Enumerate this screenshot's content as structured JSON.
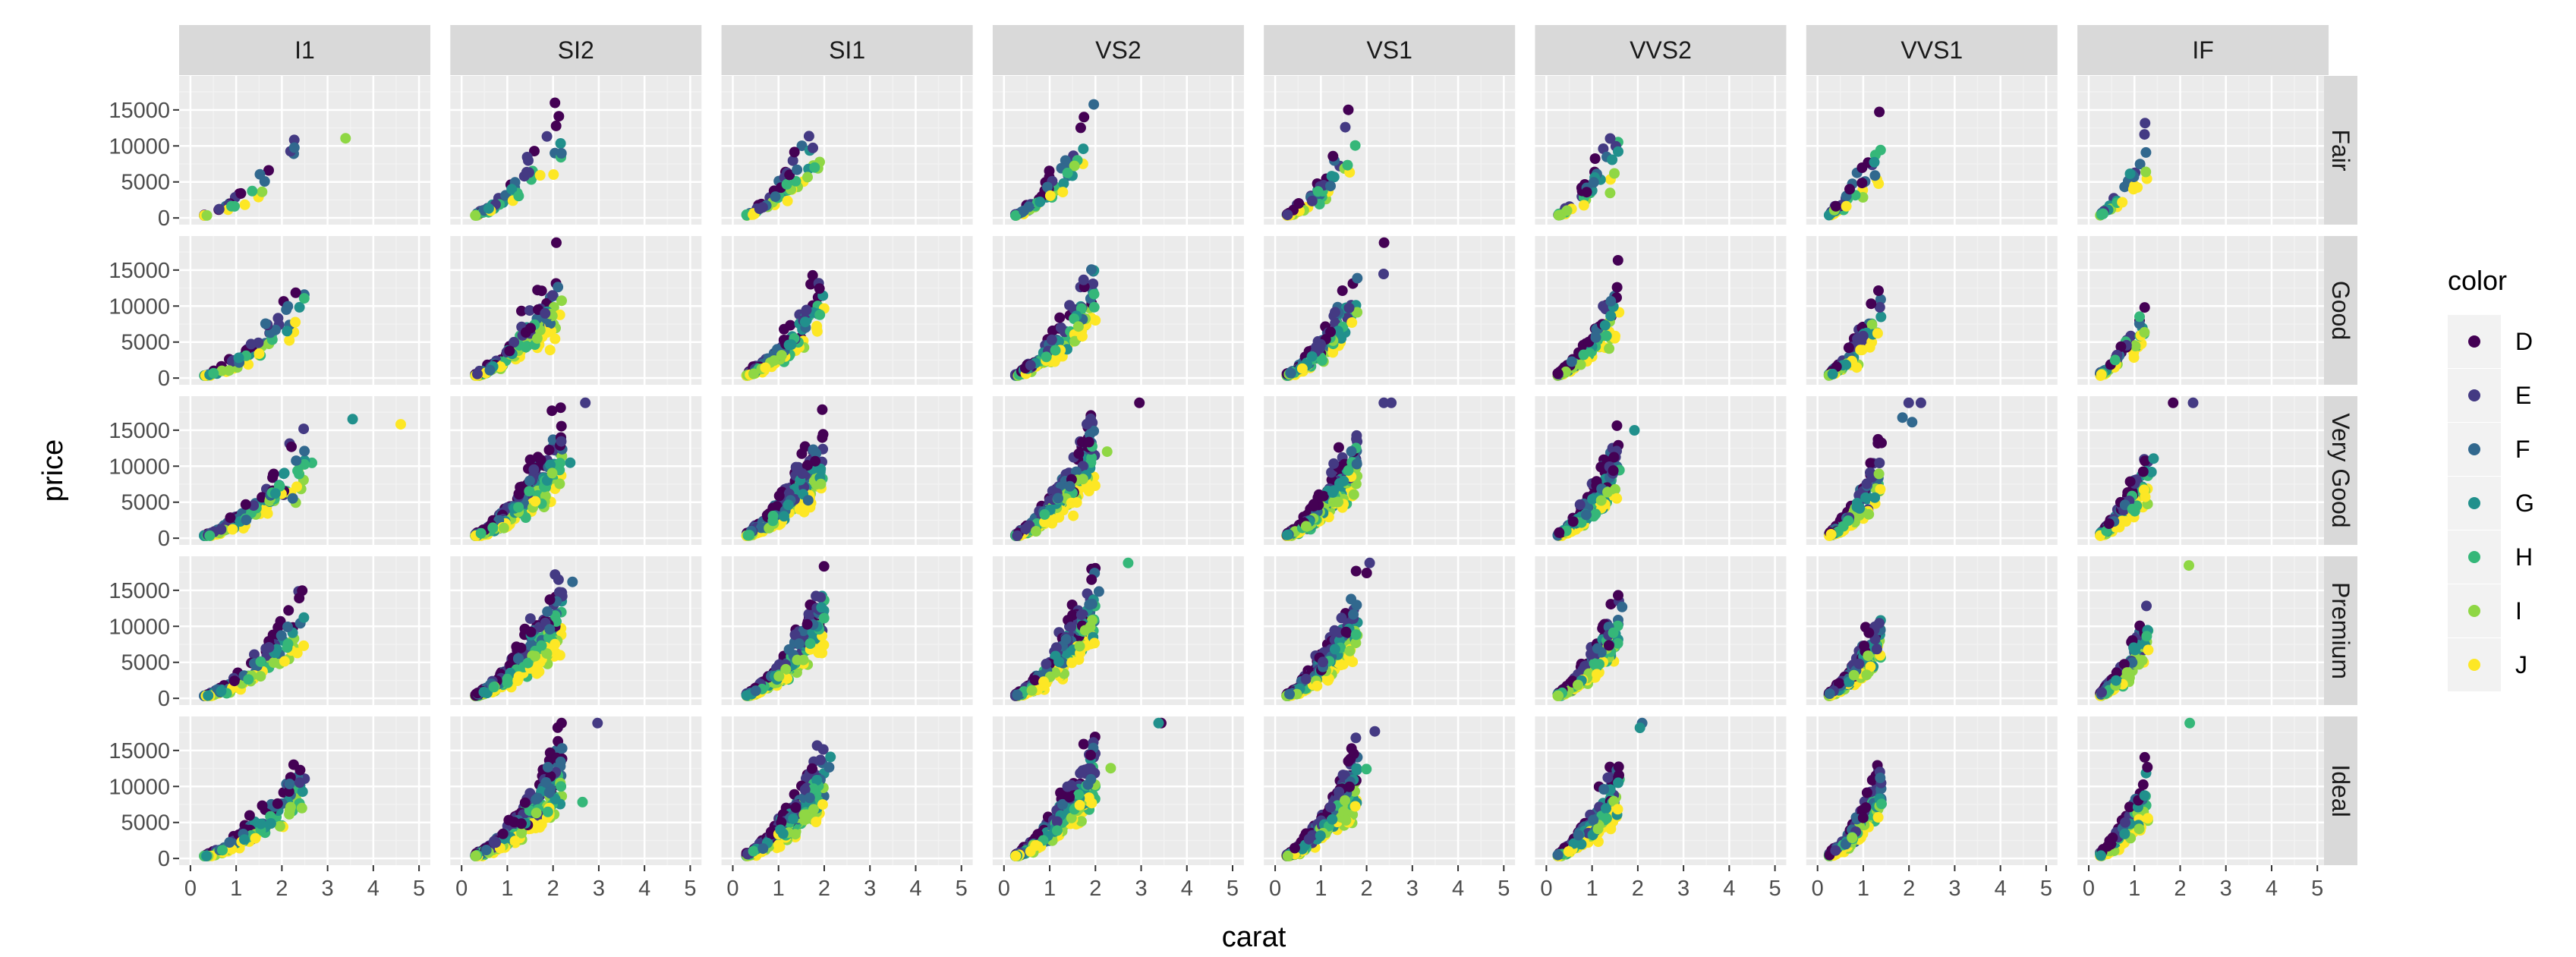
{
  "chart_data": {
    "type": "scatter",
    "facet_layout": "grid",
    "xlabel": "carat",
    "ylabel": "price",
    "xlim": [
      0,
      5
    ],
    "ylim": [
      0,
      19000
    ],
    "x_ticks": [
      "0",
      "1",
      "2",
      "3",
      "4",
      "5"
    ],
    "y_ticks": [
      "0",
      "5000",
      "10000",
      "15000"
    ],
    "column_facets": [
      "I1",
      "SI2",
      "SI1",
      "VS2",
      "VS1",
      "VVS2",
      "VVS1",
      "IF"
    ],
    "row_facets": [
      "Fair",
      "Good",
      "Very Good",
      "Premium",
      "Ideal"
    ],
    "legend": {
      "title": "color",
      "position": "right",
      "entries": [
        "D",
        "E",
        "F",
        "G",
        "H",
        "I",
        "J"
      ],
      "colors": [
        "#440154",
        "#443A83",
        "#31688E",
        "#21908C",
        "#35B779",
        "#8FD744",
        "#FDE725"
      ]
    },
    "grid": true,
    "panel_background": "#EBEBEB",
    "strip_background": "#D9D9D9",
    "panel_peaks": {
      "columns": {
        "I1": {
          "xmin": 0.3,
          "xmax_typical": 2.5,
          "xmax": 5.0
        },
        "SI2": {
          "xmin": 0.3,
          "xmax_typical": 2.2,
          "xmax": 3.0
        },
        "SI1": {
          "xmin": 0.3,
          "xmax_typical": 2.0,
          "xmax": 2.5
        },
        "VS2": {
          "xmin": 0.25,
          "xmax_typical": 2.0,
          "xmax": 3.5
        },
        "VS1": {
          "xmin": 0.25,
          "xmax_typical": 1.8,
          "xmax": 2.6
        },
        "VVS2": {
          "xmin": 0.25,
          "xmax_typical": 1.6,
          "xmax": 2.1
        },
        "VVS1": {
          "xmin": 0.25,
          "xmax_typical": 1.4,
          "xmax": 2.3
        },
        "IF": {
          "xmin": 0.25,
          "xmax_typical": 1.3,
          "xmax": 2.3
        }
      }
    }
  }
}
